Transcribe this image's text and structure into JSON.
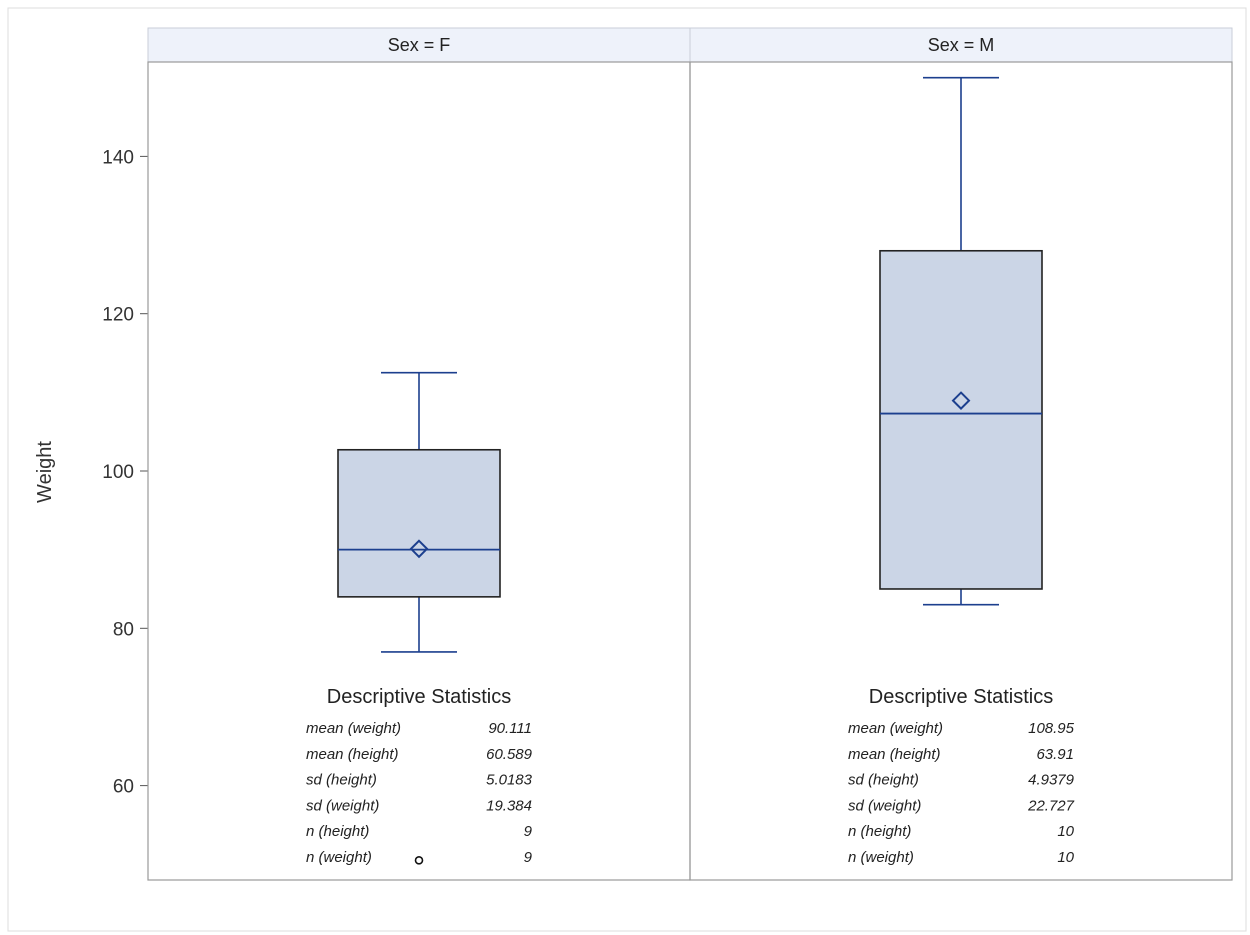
{
  "chart_data": {
    "type": "box",
    "ylabel": "Weight",
    "ylim": [
      48,
      152
    ],
    "yticks": [
      60,
      80,
      100,
      120,
      140
    ],
    "grid": false,
    "panels": [
      {
        "label": "Sex = F",
        "box": {
          "whisker_low": 77,
          "q1": 84,
          "median": 90,
          "q3": 102.7,
          "whisker_high": 112.5,
          "mean": 90.111,
          "outliers": [
            50.5
          ]
        },
        "stats_title": "Descriptive Statistics",
        "stats": [
          {
            "name": "mean (weight)",
            "value": "90.111"
          },
          {
            "name": "mean (height)",
            "value": "60.589"
          },
          {
            "name": "sd (height)",
            "value": "5.0183"
          },
          {
            "name": "sd (weight)",
            "value": "19.384"
          },
          {
            "name": "n (height)",
            "value": "9"
          },
          {
            "name": "n (weight)",
            "value": "9"
          }
        ]
      },
      {
        "label": "Sex = M",
        "box": {
          "whisker_low": 83,
          "q1": 85,
          "median": 107.3,
          "q3": 128,
          "whisker_high": 150,
          "mean": 108.95,
          "outliers": []
        },
        "stats_title": "Descriptive Statistics",
        "stats": [
          {
            "name": "mean (weight)",
            "value": "108.95"
          },
          {
            "name": "mean (height)",
            "value": "63.91"
          },
          {
            "name": "sd (height)",
            "value": "4.9379"
          },
          {
            "name": "sd (weight)",
            "value": "22.727"
          },
          {
            "name": "n (height)",
            "value": "10"
          },
          {
            "name": "n (weight)",
            "value": "10"
          }
        ]
      }
    ],
    "colors": {
      "box_fill": "#cbd5e6",
      "box_line": "#1c3f8e",
      "frame": "#9a9a9a",
      "strip_fill": "#eef2fa",
      "text": "#333333"
    }
  }
}
